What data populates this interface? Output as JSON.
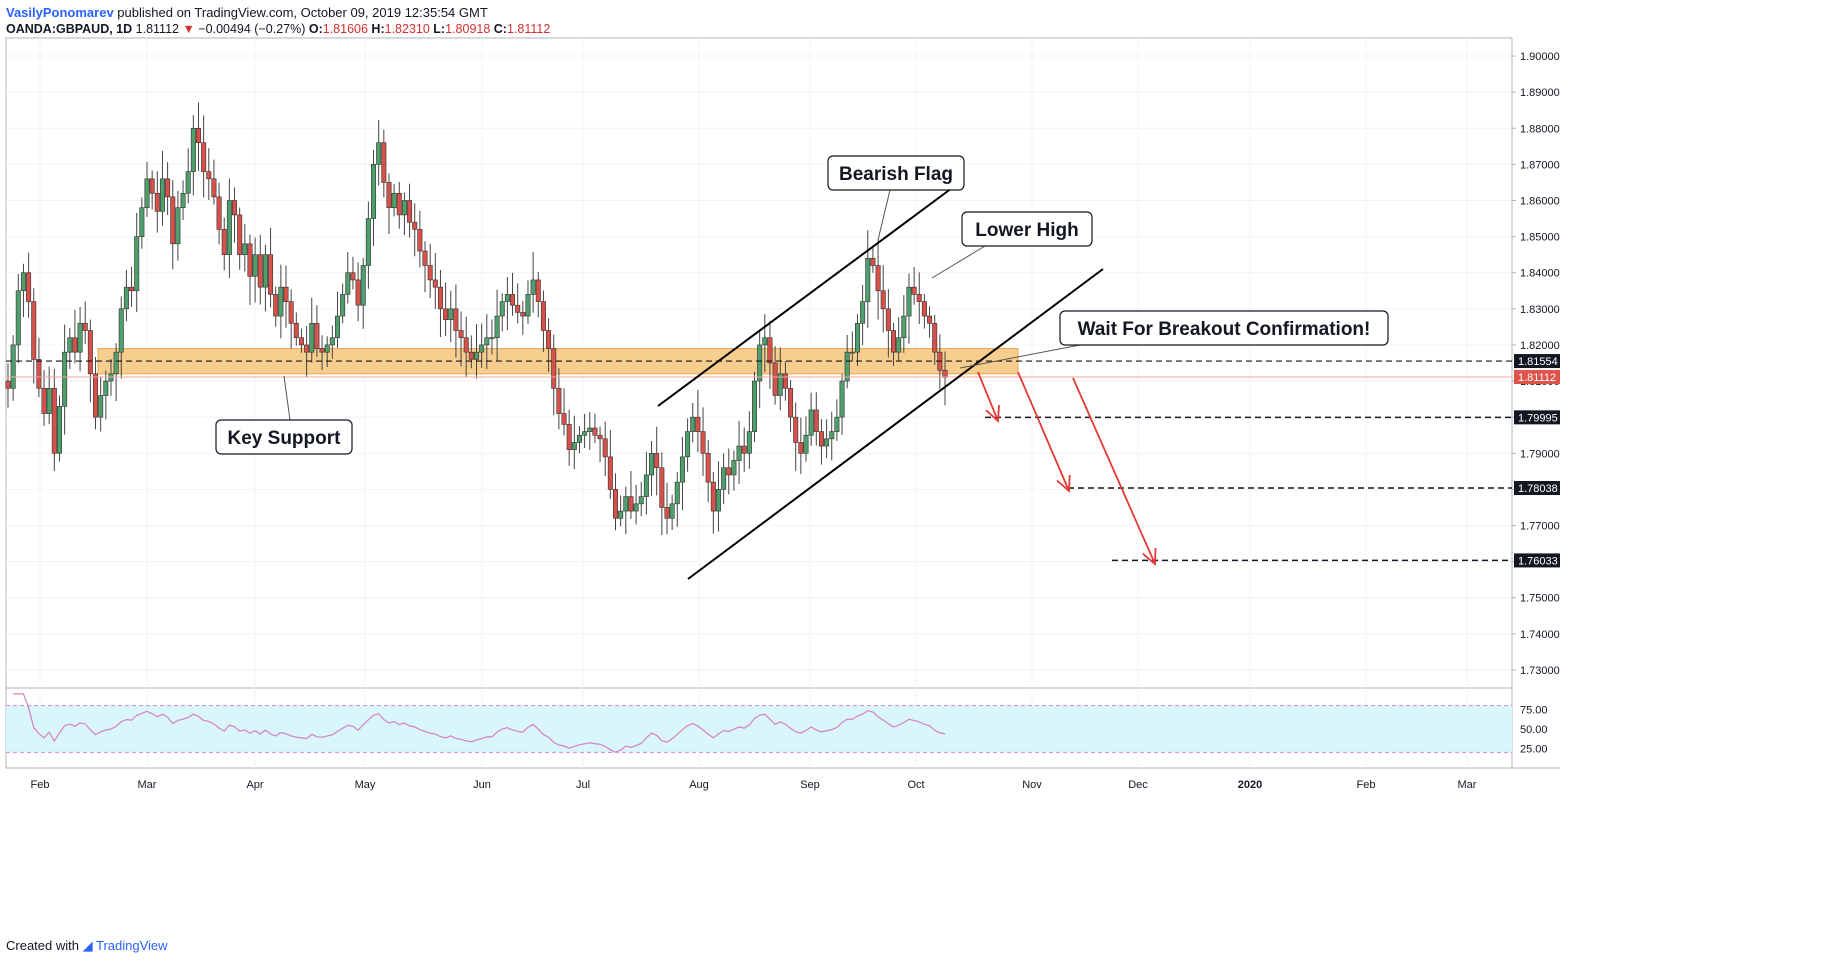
{
  "header": {
    "author": "VasilyPonomarev",
    "published": "published on TradingView.com, October 09, 2019 12:35:54 GMT",
    "symbol": "OANDA:GBPAUD, 1D",
    "last": "1.81112",
    "change_arrow": "▼",
    "change": "−0.00494 (−0.27%)",
    "o_label": "O:",
    "o_val": "1.81606",
    "h_label": "H:",
    "h_val": "1.82310",
    "l_label": "L:",
    "l_val": "1.80918",
    "c_label": "C:",
    "c_val": "1.81112"
  },
  "footer": {
    "created": "Created with",
    "brand": "TradingView"
  },
  "colors": {
    "up": "#4f9e6b",
    "down": "#d6514a",
    "wick": "#444444",
    "support_zone": "#f7c57a",
    "arrow": "#e53935",
    "rsi_fill": "#d9f6fb",
    "rsi_line": "#d77fc4",
    "last_price_tag": "#e0534a",
    "grid": "#f0f3fa"
  },
  "chart_data": {
    "type": "candlestick",
    "ylim": [
      1.725,
      1.905
    ],
    "y_ticks": [
      "1.90000",
      "1.89000",
      "1.88000",
      "1.87000",
      "1.86000",
      "1.85000",
      "1.84000",
      "1.83000",
      "1.82000",
      "1.81000",
      "1.80000",
      "1.79000",
      "1.78000",
      "1.77000",
      "1.76000",
      "1.75000",
      "1.74000",
      "1.73000"
    ],
    "x_ticks": [
      "Feb",
      "Mar",
      "Apr",
      "May",
      "Jun",
      "Jul",
      "Aug",
      "Sep",
      "Oct",
      "Nov",
      "Dec",
      "2020",
      "Feb",
      "Mar"
    ],
    "price_tags": [
      {
        "value": "1.81554",
        "color": "#131722"
      },
      {
        "value": "1.81112",
        "color": "#e0534a"
      },
      {
        "value": "1.79995",
        "color": "#131722"
      },
      {
        "value": "1.78038",
        "color": "#131722"
      },
      {
        "value": "1.76033",
        "color": "#131722"
      }
    ],
    "annotations": [
      "Bearish Flag",
      "Lower High",
      "Wait For Breakout Confirmation!",
      "Key Support"
    ],
    "support_zone": [
      1.812,
      1.819
    ],
    "targets": [
      1.79995,
      1.78038,
      1.76033
    ],
    "rsi": {
      "levels": [
        "75.00",
        "50.00",
        "25.00"
      ],
      "upper": 80,
      "lower": 20
    },
    "closes": [
      1.808,
      1.82,
      1.835,
      1.84,
      1.832,
      1.816,
      1.808,
      1.801,
      1.808,
      1.79,
      1.803,
      1.818,
      1.822,
      1.818,
      1.826,
      1.824,
      1.812,
      1.8,
      1.806,
      1.81,
      1.812,
      1.818,
      1.83,
      1.836,
      1.835,
      1.85,
      1.858,
      1.866,
      1.862,
      1.857,
      1.866,
      1.861,
      1.848,
      1.858,
      1.862,
      1.868,
      1.88,
      1.876,
      1.868,
      1.866,
      1.861,
      1.852,
      1.845,
      1.86,
      1.856,
      1.845,
      1.848,
      1.839,
      1.845,
      1.836,
      1.845,
      1.834,
      1.828,
      1.836,
      1.832,
      1.826,
      1.822,
      1.82,
      1.818,
      1.826,
      1.819,
      1.818,
      1.82,
      1.822,
      1.828,
      1.834,
      1.84,
      1.838,
      1.831,
      1.842,
      1.855,
      1.87,
      1.876,
      1.865,
      1.858,
      1.862,
      1.856,
      1.86,
      1.854,
      1.852,
      1.846,
      1.842,
      1.838,
      1.836,
      1.83,
      1.827,
      1.83,
      1.824,
      1.822,
      1.818,
      1.816,
      1.818,
      1.82,
      1.822,
      1.822,
      1.828,
      1.832,
      1.834,
      1.831,
      1.829,
      1.828,
      1.834,
      1.838,
      1.832,
      1.824,
      1.819,
      1.808,
      1.801,
      1.798,
      1.791,
      1.793,
      1.795,
      1.796,
      1.797,
      1.795,
      1.794,
      1.789,
      1.78,
      1.772,
      1.774,
      1.778,
      1.774,
      1.776,
      1.778,
      1.784,
      1.79,
      1.786,
      1.775,
      1.772,
      1.776,
      1.782,
      1.789,
      1.796,
      1.8,
      1.796,
      1.79,
      1.782,
      1.774,
      1.78,
      1.786,
      1.784,
      1.788,
      1.792,
      1.79,
      1.796,
      1.81,
      1.82,
      1.822,
      1.815,
      1.806,
      1.812,
      1.808,
      1.8,
      1.793,
      1.79,
      1.795,
      1.802,
      1.796,
      1.792,
      1.794,
      1.796,
      1.8,
      1.81,
      1.818,
      1.818,
      1.826,
      1.832,
      1.844,
      1.842,
      1.835,
      1.83,
      1.824,
      1.818,
      1.822,
      1.828,
      1.836,
      1.834,
      1.832,
      1.828,
      1.826,
      1.818,
      1.813,
      1.811
    ]
  }
}
